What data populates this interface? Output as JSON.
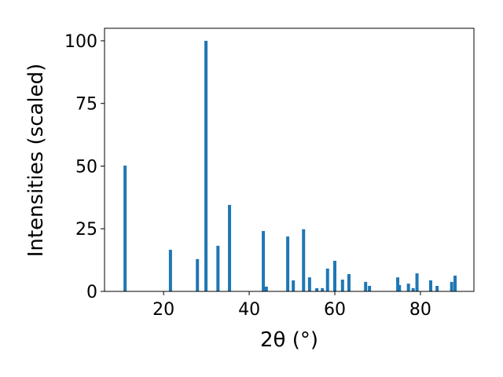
{
  "chart_data": {
    "type": "bar",
    "xlabel": "2θ (°)",
    "ylabel": "Intensities (scaled)",
    "x": [
      11.0,
      21.6,
      27.9,
      29.9,
      32.7,
      35.4,
      43.3,
      44.0,
      49.0,
      50.3,
      52.7,
      54.1,
      55.8,
      57.1,
      58.3,
      60.0,
      61.8,
      63.3,
      67.2,
      68.1,
      74.7,
      75.1,
      77.2,
      78.3,
      79.2,
      82.4,
      83.9,
      87.3,
      88.1
    ],
    "values": [
      50.2,
      16.6,
      12.9,
      100,
      18.2,
      34.5,
      24.1,
      1.9,
      21.9,
      4.4,
      24.8,
      5.6,
      1.3,
      1.3,
      9.1,
      12.2,
      4.7,
      6.9,
      3.8,
      2.2,
      5.6,
      2.5,
      3.1,
      1.3,
      7.2,
      4.4,
      2.2,
      3.8,
      6.3
    ],
    "color": "#1f77b4",
    "xlim": [
      6.2,
      92.5
    ],
    "xticks": [
      20,
      40,
      60,
      80
    ],
    "ylim": [
      0,
      105
    ],
    "yticks": [
      0,
      25,
      50,
      75,
      100
    ]
  }
}
